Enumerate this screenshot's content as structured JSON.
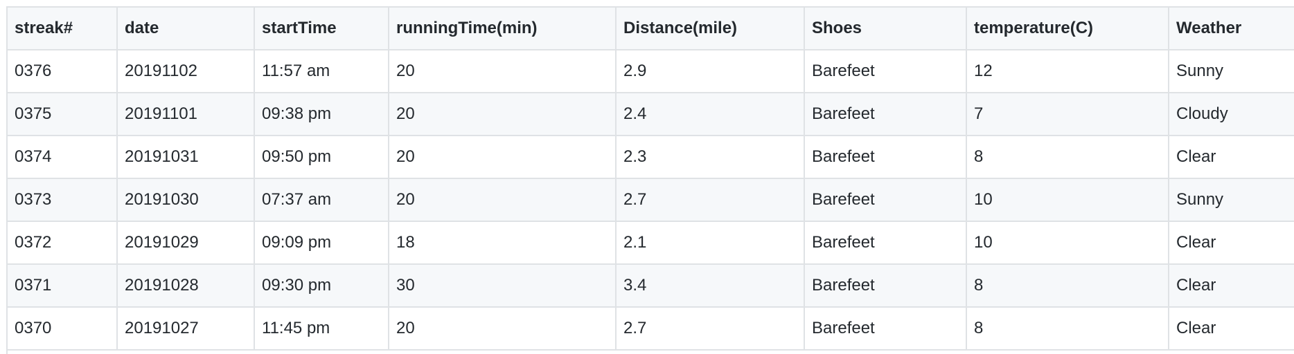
{
  "table": {
    "headers": [
      "streak#",
      "date",
      "startTime",
      "runningTime(min)",
      "Distance(mile)",
      "Shoes",
      "temperature(C)",
      "Weather"
    ],
    "rows": [
      [
        "0376",
        "20191102",
        "11:57 am",
        "20",
        "2.9",
        "Barefeet",
        "12",
        "Sunny"
      ],
      [
        "0375",
        "20191101",
        "09:38 pm",
        "20",
        "2.4",
        "Barefeet",
        "7",
        "Cloudy"
      ],
      [
        "0374",
        "20191031",
        "09:50 pm",
        "20",
        "2.3",
        "Barefeet",
        "8",
        "Clear"
      ],
      [
        "0373",
        "20191030",
        "07:37 am",
        "20",
        "2.7",
        "Barefeet",
        "10",
        "Sunny"
      ],
      [
        "0372",
        "20191029",
        "09:09 pm",
        "18",
        "2.1",
        "Barefeet",
        "10",
        "Clear"
      ],
      [
        "0371",
        "20191028",
        "09:30 pm",
        "30",
        "3.4",
        "Barefeet",
        "8",
        "Clear"
      ],
      [
        "0370",
        "20191027",
        "11:45 pm",
        "20",
        "2.7",
        "Barefeet",
        "8",
        "Clear"
      ]
    ]
  },
  "colors": {
    "border": "#dfe2e5",
    "stripe": "#f6f8fa",
    "text": "#24292e"
  }
}
